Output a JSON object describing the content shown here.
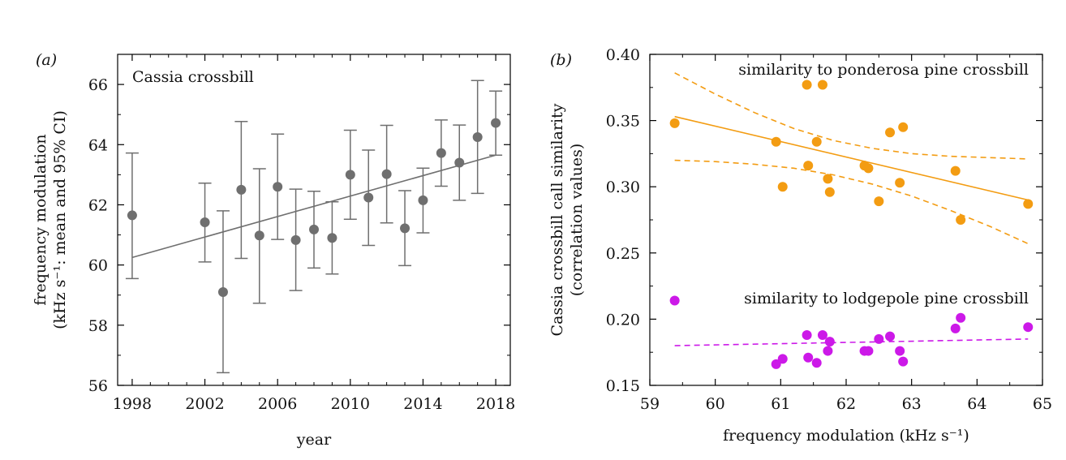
{
  "figure": {
    "panel_a_label": "(a)",
    "panel_b_label": "(b)",
    "panel_a_annotation": "Cassia crossbill",
    "panel_b_annotation_orange": "similarity to ponderosa pine crossbill",
    "panel_b_annotation_purple": "similarity to lodgepole pine crossbill",
    "colors": {
      "grey": "#6f6f6f",
      "orange": "#f39c12",
      "purple": "#cc19e8",
      "axis": "#000000"
    }
  },
  "chart_data": [
    {
      "type": "scatter",
      "panel": "a",
      "title": "",
      "annotation": "Cassia crossbill",
      "xlabel": "year",
      "ylabel_line1": "frequency modulation",
      "ylabel_line2": "(kHz s⁻¹: mean and 95% CI)",
      "xlim": [
        1997.2,
        2018.8
      ],
      "ylim": [
        56,
        67
      ],
      "xticks": [
        1998,
        2002,
        2006,
        2010,
        2014,
        2018
      ],
      "xticks_minor_step": 1,
      "yticks": [
        56,
        58,
        60,
        62,
        64,
        66
      ],
      "yticks_minor_step": 1,
      "series": [
        {
          "points": [
            {
              "x": 1998,
              "y": 61.65,
              "lo": 59.55,
              "hi": 63.72
            },
            {
              "x": 2002,
              "y": 61.42,
              "lo": 60.1,
              "hi": 62.72
            },
            {
              "x": 2003,
              "y": 59.1,
              "lo": 56.42,
              "hi": 61.8
            },
            {
              "x": 2004,
              "y": 62.5,
              "lo": 60.22,
              "hi": 64.77
            },
            {
              "x": 2005,
              "y": 60.98,
              "lo": 58.73,
              "hi": 63.2
            },
            {
              "x": 2006,
              "y": 62.6,
              "lo": 60.85,
              "hi": 64.35
            },
            {
              "x": 2007,
              "y": 60.83,
              "lo": 59.15,
              "hi": 62.52
            },
            {
              "x": 2008,
              "y": 61.18,
              "lo": 59.9,
              "hi": 62.45
            },
            {
              "x": 2009,
              "y": 60.9,
              "lo": 59.7,
              "hi": 62.1
            },
            {
              "x": 2010,
              "y": 63.0,
              "lo": 61.52,
              "hi": 64.48
            },
            {
              "x": 2011,
              "y": 62.24,
              "lo": 60.65,
              "hi": 63.82
            },
            {
              "x": 2012,
              "y": 63.02,
              "lo": 61.4,
              "hi": 64.64
            },
            {
              "x": 2013,
              "y": 61.22,
              "lo": 59.98,
              "hi": 62.47
            },
            {
              "x": 2014,
              "y": 62.15,
              "lo": 61.07,
              "hi": 63.22
            },
            {
              "x": 2015,
              "y": 63.72,
              "lo": 62.62,
              "hi": 64.82
            },
            {
              "x": 2016,
              "y": 63.4,
              "lo": 62.15,
              "hi": 64.65
            },
            {
              "x": 2017,
              "y": 64.25,
              "lo": 62.38,
              "hi": 66.13
            },
            {
              "x": 2018,
              "y": 64.72,
              "lo": 63.65,
              "hi": 65.78
            }
          ],
          "color": "#6f6f6f"
        }
      ],
      "fit_line": {
        "x": [
          1998,
          2018
        ],
        "y": [
          60.25,
          63.65
        ],
        "style": "solid",
        "color": "#6f6f6f"
      }
    },
    {
      "type": "scatter",
      "panel": "b",
      "title": "",
      "xlabel": "frequency modulation (kHz s⁻¹)",
      "ylabel_line1": "Cassia crossbill call similarity",
      "ylabel_line2": "(correlation values)",
      "xlim": [
        59,
        65
      ],
      "ylim": [
        0.15,
        0.4
      ],
      "xticks": [
        59,
        60,
        61,
        62,
        63,
        64,
        65
      ],
      "xticks_minor_step": 0.5,
      "yticks": [
        0.15,
        0.2,
        0.25,
        0.3,
        0.35,
        0.4
      ],
      "ytick_labels": [
        "0.15",
        "0.20",
        "0.25",
        "0.30",
        "0.35",
        "0.40"
      ],
      "yticks_minor_step": 0.025,
      "series": [
        {
          "annotation": "similarity to ponderosa pine crossbill",
          "color": "#f39c12",
          "x": [
            59.38,
            60.93,
            61.03,
            61.4,
            61.42,
            61.55,
            61.64,
            61.72,
            61.75,
            62.28,
            62.34,
            62.5,
            62.67,
            62.82,
            62.87,
            63.67,
            63.75,
            64.78
          ],
          "y": [
            0.348,
            0.334,
            0.3,
            0.377,
            0.316,
            0.334,
            0.377,
            0.306,
            0.296,
            0.316,
            0.314,
            0.289,
            0.341,
            0.303,
            0.345,
            0.312,
            0.275,
            0.287
          ],
          "fit_line": {
            "x": [
              59.38,
              64.78
            ],
            "y": [
              0.353,
              0.29
            ]
          },
          "ci_upper": {
            "x": [
              59.38,
              60.0,
              60.6,
              61.2,
              61.8,
              62.4,
              63.0,
              63.6,
              64.2,
              64.78
            ],
            "y": [
              0.386,
              0.37,
              0.356,
              0.344,
              0.335,
              0.329,
              0.325,
              0.323,
              0.322,
              0.321
            ]
          },
          "ci_lower": {
            "x": [
              59.38,
              60.0,
              60.6,
              61.2,
              61.8,
              62.4,
              63.0,
              63.6,
              64.2,
              64.78
            ],
            "y": [
              0.32,
              0.319,
              0.317,
              0.314,
              0.309,
              0.302,
              0.293,
              0.282,
              0.27,
              0.257
            ]
          }
        },
        {
          "annotation": "similarity to lodgepole pine crossbill",
          "color": "#cc19e8",
          "x": [
            59.38,
            60.93,
            61.03,
            61.4,
            61.42,
            61.55,
            61.64,
            61.72,
            61.75,
            62.28,
            62.34,
            62.5,
            62.67,
            62.82,
            62.87,
            63.67,
            63.75,
            64.78
          ],
          "y": [
            0.214,
            0.166,
            0.17,
            0.188,
            0.171,
            0.167,
            0.188,
            0.176,
            0.183,
            0.176,
            0.176,
            0.185,
            0.187,
            0.176,
            0.168,
            0.193,
            0.201,
            0.194
          ],
          "fit_line": {
            "x": [
              59.38,
              64.78
            ],
            "y": [
              0.18,
              0.185
            ],
            "style": "dashed"
          }
        }
      ]
    }
  ]
}
